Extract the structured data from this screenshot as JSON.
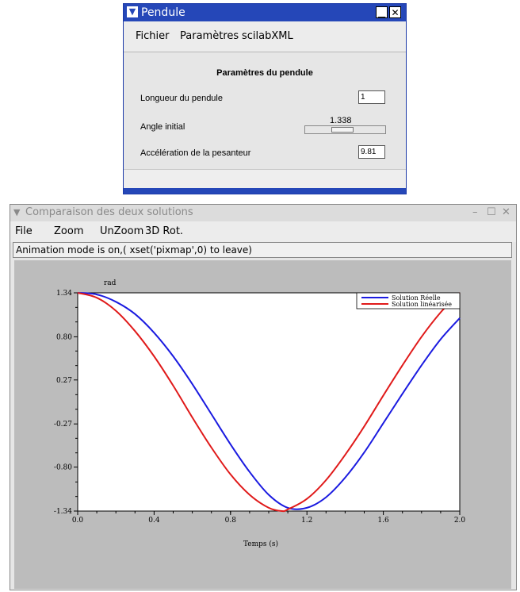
{
  "pendule_window": {
    "title": "Pendule",
    "controls": {
      "minimize": "▁",
      "close": "✕"
    },
    "menu": [
      "Fichier",
      "Paramètres",
      "scilabXML"
    ],
    "panel_title": "Paramètres du pendule",
    "fields": {
      "longueur": {
        "label": "Longueur du pendule",
        "value": "1"
      },
      "angle": {
        "label": "Angle initial",
        "slider_value": "1.338",
        "slider_position": 0.45
      },
      "acceleration": {
        "label": "Accélération de la pesanteur",
        "value": "9.81"
      }
    }
  },
  "comparison_window": {
    "title": "Comparaison des deux solutions",
    "controls": {
      "minimize": "–",
      "maximize": "☐",
      "close": "✕"
    },
    "menu": [
      "File",
      "Zoom",
      "UnZoom",
      "3D Rot."
    ],
    "status": "Animation mode is on,( xset('pixmap',0) to leave)"
  },
  "chart_data": {
    "type": "line",
    "xlabel": "Temps (s)",
    "ylabel": "rad",
    "xlim": [
      0.0,
      2.0
    ],
    "ylim": [
      -1.34,
      1.34
    ],
    "x_ticks": [
      0.0,
      0.4,
      0.8,
      1.2,
      1.6,
      2.0
    ],
    "x_tick_labels": [
      "0.0",
      "0.4",
      "0.8",
      "1.2",
      "1.6",
      "2.0"
    ],
    "y_ticks": [
      1.34,
      0.8,
      0.27,
      -0.27,
      -0.8,
      -1.34
    ],
    "y_tick_labels": [
      "1.34",
      "0.80",
      "0.27",
      "-0.27",
      "-0.80",
      "-1.34"
    ],
    "legend_position": "top-right",
    "grid": false,
    "series": [
      {
        "name": "Solution Réelle",
        "color": "#1a1ae0",
        "x": [
          0.0,
          0.1,
          0.2,
          0.3,
          0.4,
          0.5,
          0.6,
          0.7,
          0.8,
          0.9,
          1.0,
          1.1,
          1.2,
          1.3,
          1.4,
          1.5,
          1.6,
          1.7,
          1.8,
          1.9,
          2.0
        ],
        "y": [
          1.34,
          1.32,
          1.23,
          1.08,
          0.85,
          0.56,
          0.22,
          -0.15,
          -0.52,
          -0.86,
          -1.14,
          -1.3,
          -1.3,
          -1.17,
          -0.93,
          -0.62,
          -0.26,
          0.1,
          0.45,
          0.77,
          1.03
        ]
      },
      {
        "name": "Solution linéarisée",
        "color": "#e01a1a",
        "x": [
          0.0,
          0.1,
          0.2,
          0.3,
          0.4,
          0.5,
          0.6,
          0.7,
          0.8,
          0.9,
          1.0,
          1.07,
          1.1,
          1.2,
          1.3,
          1.4,
          1.5,
          1.6,
          1.7,
          1.8,
          1.9,
          2.0
        ],
        "y": [
          1.34,
          1.28,
          1.12,
          0.87,
          0.56,
          0.2,
          -0.19,
          -0.56,
          -0.89,
          -1.14,
          -1.3,
          -1.34,
          -1.32,
          -1.19,
          -0.96,
          -0.65,
          -0.3,
          0.08,
          0.45,
          0.8,
          1.1,
          1.34
        ]
      }
    ]
  }
}
